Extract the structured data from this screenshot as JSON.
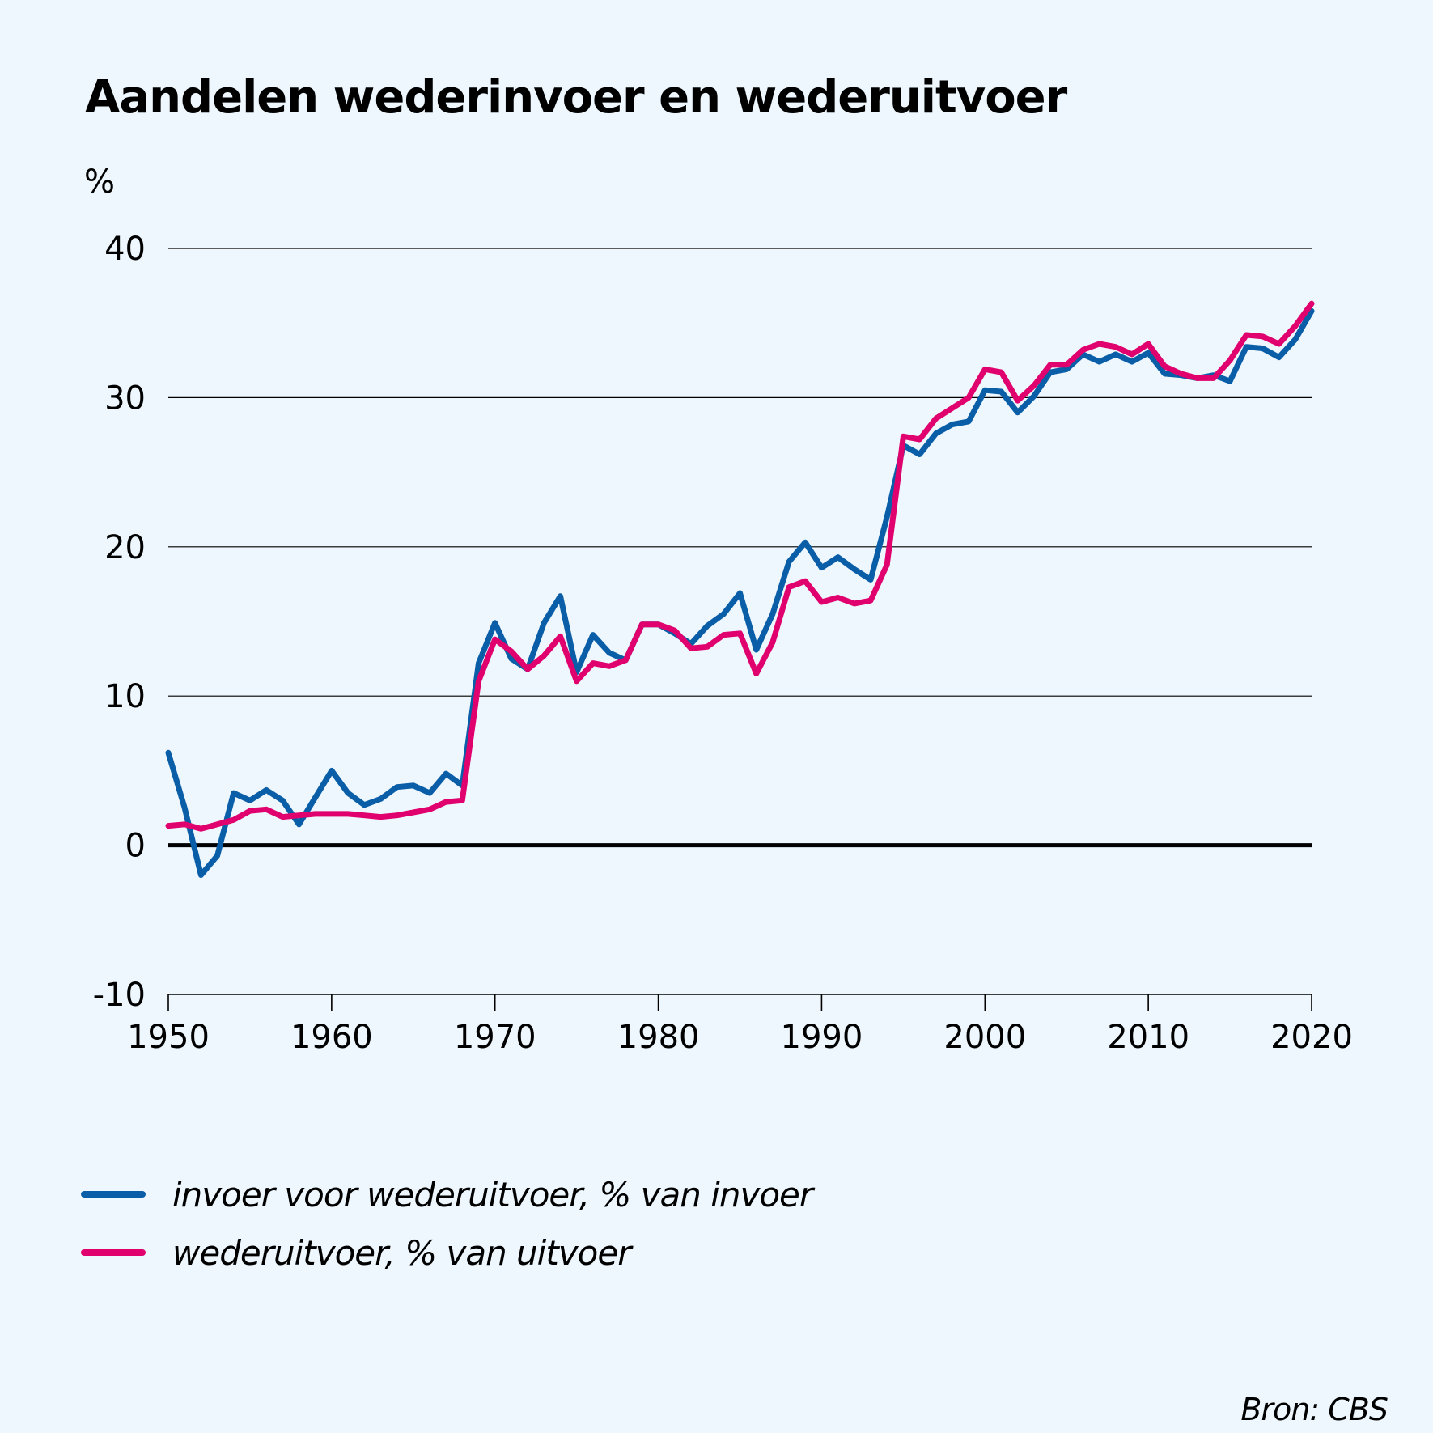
{
  "chart_data": {
    "type": "line",
    "title": "Aandelen wederinvoer en wederuitvoer",
    "ylabel": "%",
    "ylim": [
      -10,
      40
    ],
    "yticks": [
      -10,
      0,
      10,
      20,
      30,
      40
    ],
    "xlim": [
      1950,
      2020
    ],
    "xticks": [
      1950,
      1960,
      1970,
      1980,
      1990,
      2000,
      2010,
      2020
    ],
    "grid": true,
    "legend_position": "bottom-left",
    "x": [
      1950,
      1951,
      1952,
      1953,
      1954,
      1955,
      1956,
      1957,
      1958,
      1959,
      1960,
      1961,
      1962,
      1963,
      1964,
      1965,
      1966,
      1967,
      1968,
      1969,
      1970,
      1971,
      1972,
      1973,
      1974,
      1975,
      1976,
      1977,
      1978,
      1979,
      1980,
      1981,
      1982,
      1983,
      1984,
      1985,
      1986,
      1987,
      1988,
      1989,
      1990,
      1991,
      1992,
      1993,
      1994,
      1995,
      1996,
      1997,
      1998,
      1999,
      2000,
      2001,
      2002,
      2003,
      2004,
      2005,
      2006,
      2007,
      2008,
      2009,
      2010,
      2011,
      2012,
      2013,
      2014,
      2015,
      2016,
      2017,
      2018,
      2019,
      2020
    ],
    "series": [
      {
        "name": "invoer voor wederuitvoer, % van invoer",
        "color": "#0a5ea8",
        "values": [
          6.2,
          2.5,
          -2.0,
          -0.7,
          3.5,
          3.0,
          3.7,
          3.0,
          1.4,
          3.2,
          5.0,
          3.5,
          2.7,
          3.1,
          3.9,
          4.0,
          3.5,
          4.8,
          4.0,
          12.2,
          14.9,
          12.5,
          11.8,
          14.9,
          16.7,
          11.6,
          14.1,
          12.9,
          12.4,
          14.8,
          14.8,
          14.2,
          13.5,
          14.7,
          15.5,
          16.9,
          13.1,
          15.5,
          19.0,
          20.3,
          18.6,
          19.3,
          18.5,
          17.8,
          22.0,
          26.8,
          26.2,
          27.6,
          28.2,
          28.4,
          30.5,
          30.4,
          29.0,
          30.1,
          31.7,
          31.9,
          32.9,
          32.4,
          32.9,
          32.4,
          33.0,
          31.6,
          31.5,
          31.3,
          31.5,
          31.1,
          33.4,
          33.3,
          32.7,
          33.9,
          35.8
        ]
      },
      {
        "name": "wederuitvoer, % van uitvoer",
        "color": "#e0006e",
        "values": [
          1.3,
          1.4,
          1.1,
          1.4,
          1.7,
          2.3,
          2.4,
          1.9,
          2.0,
          2.1,
          2.1,
          2.1,
          2.0,
          1.9,
          2.0,
          2.2,
          2.4,
          2.9,
          3.0,
          11.0,
          13.8,
          13.0,
          11.8,
          12.7,
          14.0,
          11.0,
          12.2,
          12.0,
          12.4,
          14.8,
          14.8,
          14.4,
          13.2,
          13.3,
          14.1,
          14.2,
          11.5,
          13.6,
          17.3,
          17.7,
          16.3,
          16.6,
          16.2,
          16.4,
          18.8,
          27.4,
          27.2,
          28.6,
          29.3,
          30.0,
          31.9,
          31.7,
          29.8,
          30.8,
          32.2,
          32.2,
          33.2,
          33.6,
          33.4,
          32.9,
          33.6,
          32.1,
          31.6,
          31.3,
          31.3,
          32.5,
          34.2,
          34.1,
          33.6,
          34.8,
          36.3
        ]
      }
    ]
  },
  "source": "Bron: CBS"
}
